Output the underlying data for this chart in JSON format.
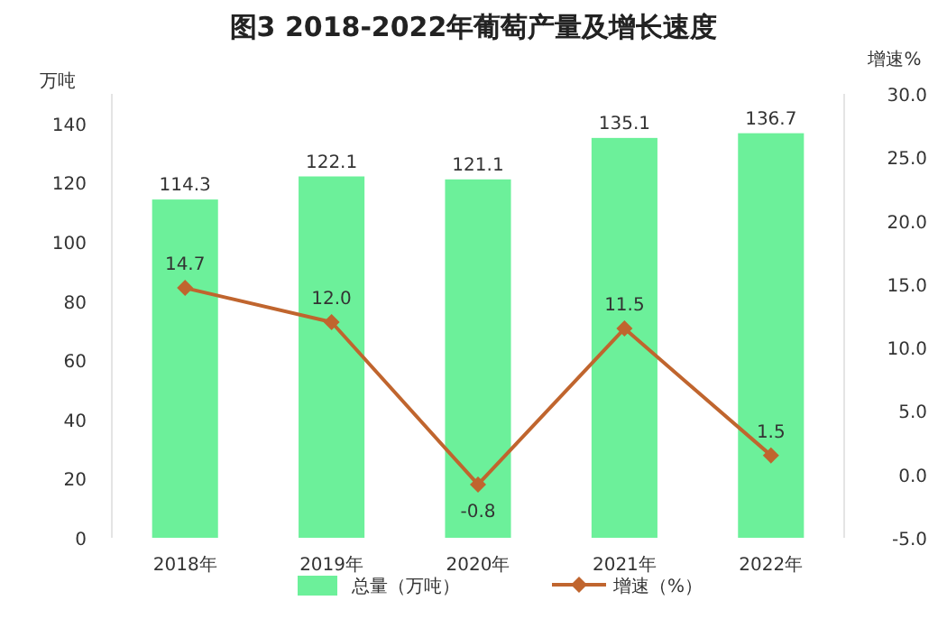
{
  "chart_data": {
    "type": "bar",
    "title": "图3  2018-2022年葡萄产量及增长速度",
    "ylabel": "万吨",
    "y2label": "增速%",
    "categories": [
      "2018年",
      "2019年",
      "2020年",
      "2021年",
      "2022年"
    ],
    "series": [
      {
        "name": "总量（万吨）",
        "color": "#6cf09a",
        "values": [
          114.3,
          122.1,
          121.1,
          135.1,
          136.7
        ],
        "value_labels": [
          "114.3",
          "122.1",
          "121.1",
          "135.1",
          "136.7"
        ]
      },
      {
        "name": "增速（%）",
        "type": "line",
        "axis": "y2",
        "color": "#c0652e",
        "values": [
          14.7,
          12.0,
          -0.8,
          11.5,
          1.5
        ],
        "value_labels": [
          "14.7",
          "12.0",
          "-0.8",
          "11.5",
          "1.5"
        ]
      }
    ],
    "ylim": [
      0,
      150
    ],
    "yticks": [
      0,
      20,
      40,
      60,
      80,
      100,
      120,
      140
    ],
    "y2lim": [
      -5,
      30
    ],
    "y2ticks": [
      {
        "value": -5,
        "label": "-5.0"
      },
      {
        "value": 0,
        "label": "0.0"
      },
      {
        "value": 5,
        "label": "5.0"
      },
      {
        "value": 10,
        "label": "10.0"
      },
      {
        "value": 15,
        "label": "15.0"
      },
      {
        "value": 20,
        "label": "20.0"
      },
      {
        "value": 25,
        "label": "25.0"
      },
      {
        "value": 30,
        "label": "30.0"
      }
    ],
    "marker": "diamond",
    "line_style": "solid",
    "grid": false,
    "legend": "bottom"
  }
}
